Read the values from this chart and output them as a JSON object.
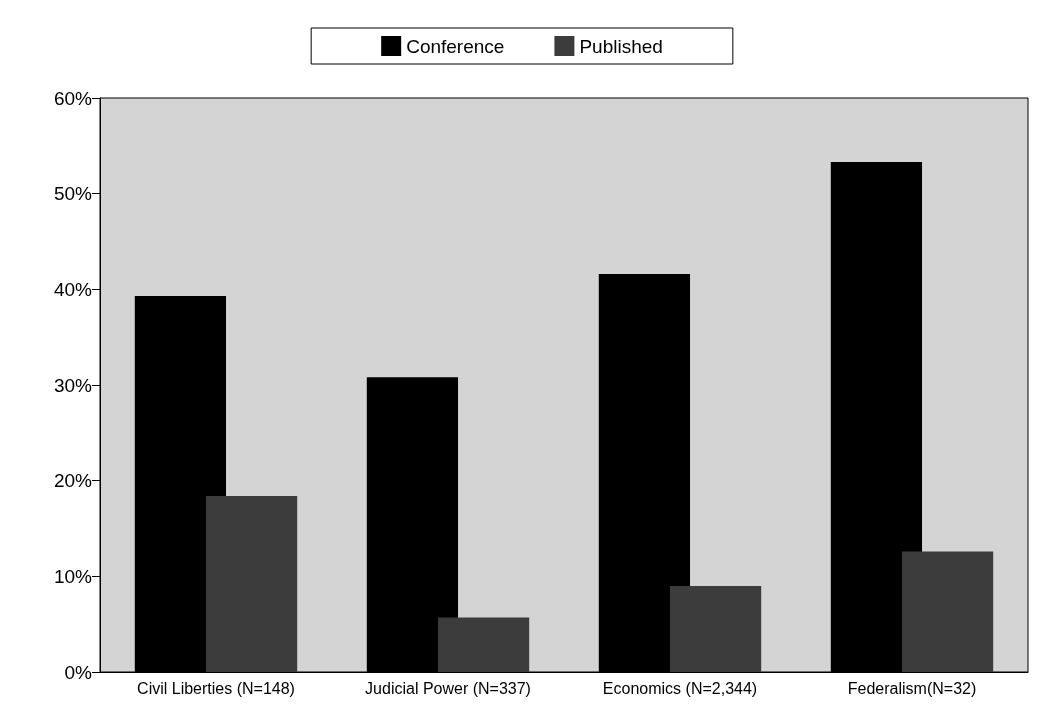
{
  "chart_data": {
    "type": "bar",
    "categories": [
      "Civil Liberties (N=148)",
      "Judicial Power (N=337)",
      "Economics (N=2,344)",
      "Federalism(N=32)"
    ],
    "series": [
      {
        "name": "Conference",
        "color": "#000000",
        "values": [
          39.3,
          30.8,
          41.6,
          53.3
        ]
      },
      {
        "name": "Published",
        "color": "#3c3c3c",
        "values": [
          18.4,
          5.7,
          9.0,
          12.6
        ]
      }
    ],
    "ylim": [
      0,
      60
    ],
    "yticks": [
      {
        "value": 0,
        "label": "0%"
      },
      {
        "value": 10,
        "label": "10%"
      },
      {
        "value": 20,
        "label": "20%"
      },
      {
        "value": 30,
        "label": "30%"
      },
      {
        "value": 40,
        "label": "40%"
      },
      {
        "value": 50,
        "label": "50%"
      },
      {
        "value": 60,
        "label": "60%"
      }
    ],
    "grid": false,
    "legend": "top"
  }
}
